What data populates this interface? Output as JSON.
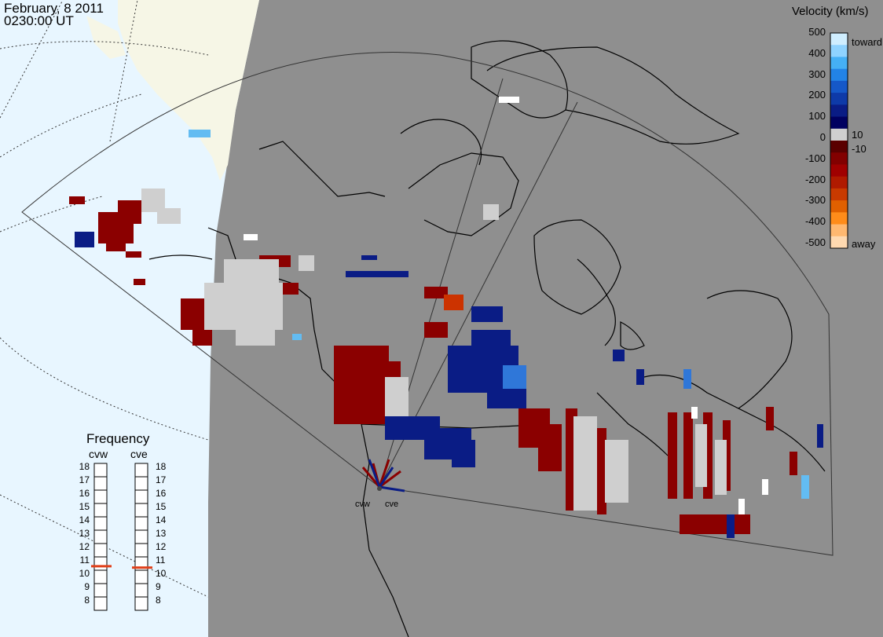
{
  "title": {
    "date": "February, 8 2011",
    "time": "0230:00 UT"
  },
  "colorbar": {
    "title": "Velocity (km/s)",
    "ticks": [
      "500",
      "400",
      "300",
      "200",
      "100",
      "0",
      "-100",
      "-200",
      "-300",
      "-400",
      "-500"
    ],
    "labels": {
      "toward": "toward",
      "away": "away",
      "pos": "10",
      "neg": "-10"
    },
    "colors": [
      "#cfeeff",
      "#8fd3ff",
      "#45b0f5",
      "#2283e6",
      "#1558c8",
      "#0e3aa8",
      "#0a1c85",
      "#000060",
      "#cfcfcf",
      "#5a0000",
      "#820000",
      "#a00000",
      "#b01a00",
      "#c83a00",
      "#e06000",
      "#ff8c1a",
      "#ffb870",
      "#ffd9b0"
    ]
  },
  "frequency": {
    "title": "Frequency",
    "radars": [
      {
        "name": "cvw",
        "value": 10.8
      },
      {
        "name": "cve",
        "value": 10.7
      }
    ],
    "scale": [
      "18",
      "17",
      "16",
      "15",
      "14",
      "13",
      "12",
      "11",
      "10",
      "9",
      "8"
    ]
  },
  "sites": [
    "cvw",
    "cve"
  ],
  "map_colors": {
    "land": "#8f8f8f",
    "ocean": "#e8f6ff",
    "land_day": "#f6f6e6"
  }
}
